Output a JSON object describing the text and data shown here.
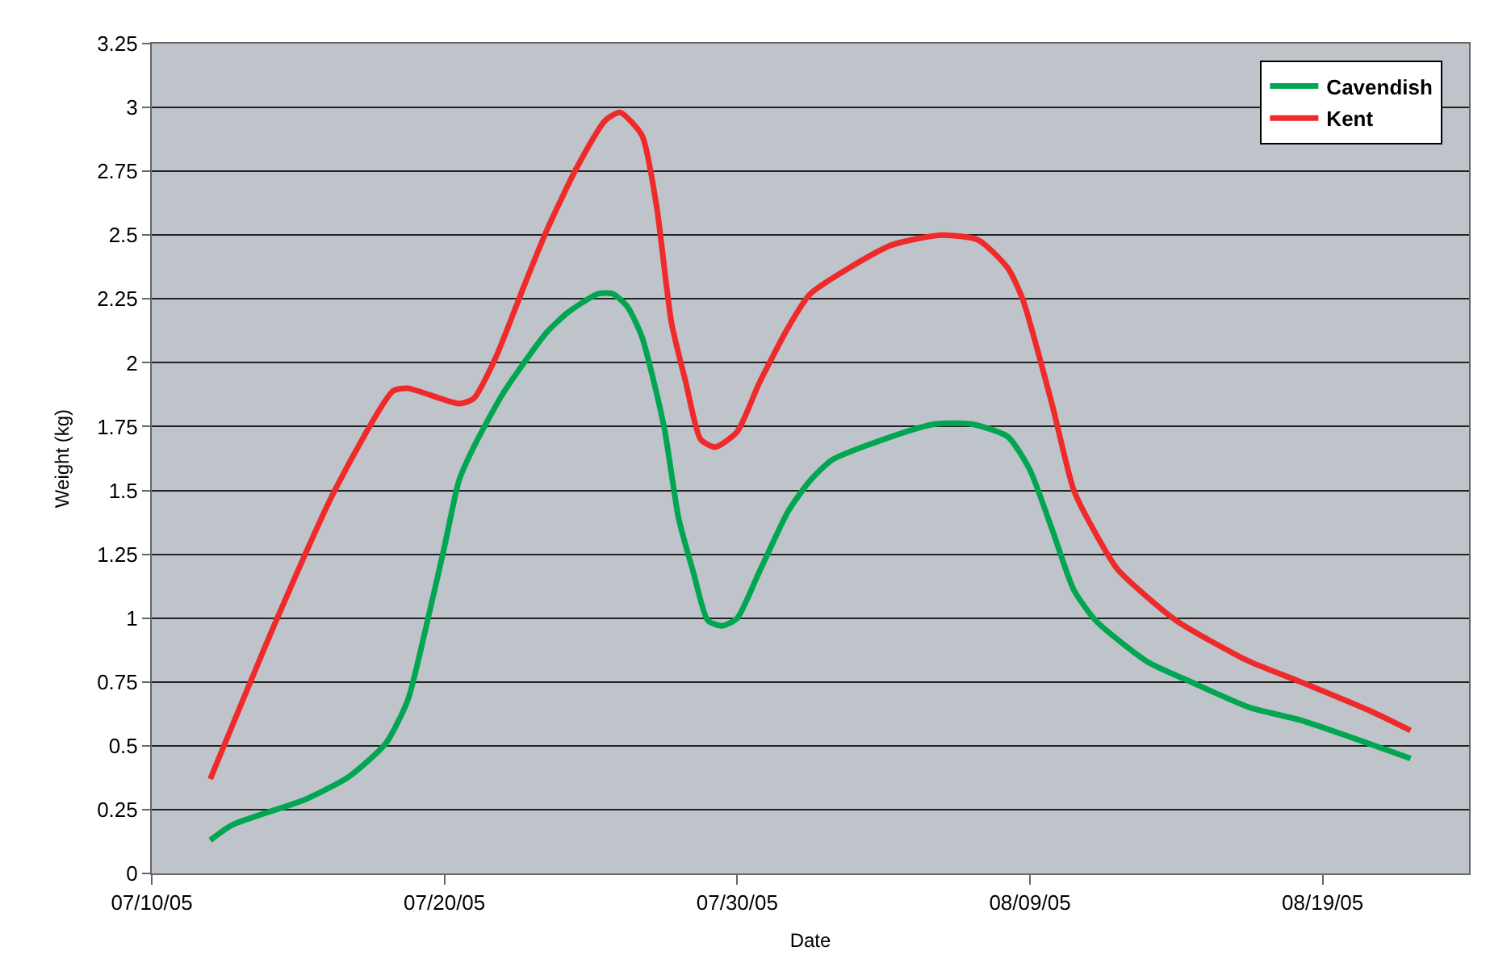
{
  "chart_data": {
    "type": "line",
    "xlabel": "Date",
    "ylabel": "Weight (kg)",
    "xlim": [
      "--07-10",
      "--08-24"
    ],
    "xticks": [
      {
        "value": "--07-10",
        "label": "07/10/05"
      },
      {
        "value": "--07-20",
        "label": "07/20/05"
      },
      {
        "value": "--07-30",
        "label": "07/30/05"
      },
      {
        "value": "--08-09",
        "label": "08/09/05"
      },
      {
        "value": "--08-19",
        "label": "08/19/05"
      }
    ],
    "ylim": [
      0,
      3.25
    ],
    "yticks": [
      0,
      0.25,
      0.5,
      0.75,
      1,
      1.25,
      1.5,
      1.75,
      2,
      2.25,
      2.5,
      2.75,
      3,
      3.25
    ],
    "grid": "y",
    "legend": "top right",
    "marker": "none",
    "line_style": "solid",
    "series": [
      {
        "name": "Cavendish",
        "color": "#00a650",
        "x": [
          "--07-12T00:00",
          "--07-12T18:00",
          "--07-15T06:00",
          "--07-16T18:00",
          "--07-18T00:00",
          "--07-18T18:00",
          "--07-19T12:00",
          "--07-20T00:00",
          "--07-20T12:00",
          "--07-21T00:00",
          "--07-22T00:00",
          "--07-23T12:00",
          "--07-24T06:00",
          "--07-25T06:00",
          "--07-25T18:00",
          "--07-26T06:00",
          "--07-26T18:00",
          "--07-27T12:00",
          "--07-28T00:00",
          "--07-28T12:00",
          "--07-29T00:00",
          "--07-29T12:00",
          "--07-30T00:00",
          "--07-30T18:00",
          "--07-31T18:00",
          "--08-01T12:00",
          "--08-02T06:00",
          "--08-04T06:00",
          "--08-05T18:00",
          "--08-07T00:00",
          "--08-08T06:00",
          "--08-09T00:00",
          "--08-09T18:00",
          "--08-10T12:00",
          "--08-11T06:00",
          "--08-13T00:00",
          "--08-14T12:00",
          "--08-16T12:00",
          "--08-18T06:00",
          "--08-22T00:00"
        ],
        "values": [
          0.13,
          0.19,
          0.29,
          0.38,
          0.51,
          0.68,
          1.03,
          1.28,
          1.54,
          1.67,
          1.88,
          2.12,
          2.2,
          2.27,
          2.27,
          2.22,
          2.1,
          1.75,
          1.39,
          1.18,
          0.99,
          0.97,
          1.0,
          1.18,
          1.42,
          1.54,
          1.62,
          1.71,
          1.76,
          1.76,
          1.71,
          1.58,
          1.35,
          1.11,
          0.99,
          0.83,
          0.75,
          0.65,
          0.6,
          0.45
        ]
      },
      {
        "name": "Kent",
        "color": "#ee2a2a",
        "x": [
          "--07-12T00:00",
          "--07-14T06:00",
          "--07-16T06:00",
          "--07-18T06:00",
          "--07-18T18:00",
          "--07-20T12:00",
          "--07-21T00:00",
          "--07-21T18:00",
          "--07-22T18:00",
          "--07-23T12:00",
          "--07-24T12:00",
          "--07-25T12:00",
          "--07-26T00:00",
          "--07-26T18:00",
          "--07-27T06:00",
          "--07-27T18:00",
          "--07-28T06:00",
          "--07-28T18:00",
          "--07-29T06:00",
          "--07-30T00:00",
          "--07-30T18:00",
          "--07-31T18:00",
          "--08-01T12:00",
          "--08-04T06:00",
          "--08-06T00:00",
          "--08-07T06:00",
          "--08-08T06:00",
          "--08-08T18:00",
          "--08-09T18:00",
          "--08-10T12:00",
          "--08-11T06:00",
          "--08-12T00:00",
          "--08-14T00:00",
          "--08-16T12:00",
          "--08-18T06:00",
          "--08-20T18:00",
          "--08-22T00:00"
        ],
        "values": [
          0.37,
          0.99,
          1.5,
          1.89,
          1.9,
          1.84,
          1.86,
          2.02,
          2.31,
          2.52,
          2.76,
          2.95,
          2.98,
          2.89,
          2.61,
          2.16,
          1.92,
          1.7,
          1.67,
          1.73,
          1.92,
          2.14,
          2.27,
          2.46,
          2.5,
          2.48,
          2.37,
          2.25,
          1.84,
          1.5,
          1.33,
          1.19,
          0.99,
          0.83,
          0.75,
          0.63,
          0.56
        ]
      }
    ]
  }
}
